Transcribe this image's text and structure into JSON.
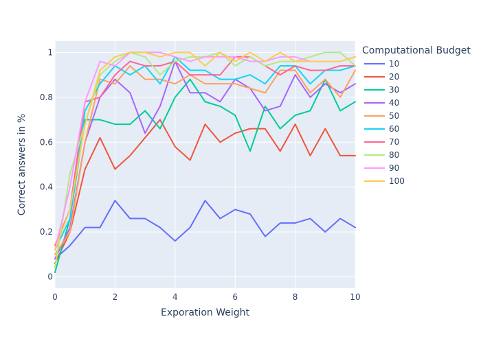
{
  "chart_data": {
    "type": "line",
    "title": "",
    "xlabel": "Exporation Weight",
    "ylabel": "Correct answers in %",
    "xlim": [
      0,
      10
    ],
    "ylim": [
      -0.05,
      1.05
    ],
    "xticks": [
      0,
      2,
      4,
      6,
      8,
      10
    ],
    "yticks": [
      0,
      0.2,
      0.4,
      0.6,
      0.8,
      1
    ],
    "ytick_labels": [
      "0",
      "0.2",
      "0.4",
      "0.6",
      "0.8",
      "1"
    ],
    "grid": true,
    "legend_title": "Computational Budget",
    "legend_position": "right",
    "x": [
      0,
      0.5,
      1,
      1.5,
      2,
      2.5,
      3,
      3.5,
      4,
      4.5,
      5,
      5.5,
      6,
      6.5,
      7,
      7.5,
      8,
      8.5,
      9,
      9.5,
      10
    ],
    "series": [
      {
        "name": "10",
        "color": "#636efa",
        "values": [
          0.08,
          0.14,
          0.22,
          0.22,
          0.34,
          0.26,
          0.26,
          0.22,
          0.16,
          0.22,
          0.34,
          0.26,
          0.3,
          0.28,
          0.18,
          0.24,
          0.24,
          0.26,
          0.2,
          0.26,
          0.22
        ]
      },
      {
        "name": "20",
        "color": "#ef553b",
        "values": [
          0.06,
          0.2,
          0.48,
          0.62,
          0.48,
          0.54,
          0.62,
          0.7,
          0.58,
          0.52,
          0.68,
          0.6,
          0.64,
          0.66,
          0.66,
          0.56,
          0.68,
          0.54,
          0.66,
          0.54,
          0.54
        ]
      },
      {
        "name": "30",
        "color": "#00cc96",
        "values": [
          0.02,
          0.26,
          0.7,
          0.7,
          0.68,
          0.68,
          0.74,
          0.66,
          0.8,
          0.88,
          0.78,
          0.76,
          0.72,
          0.56,
          0.76,
          0.66,
          0.72,
          0.74,
          0.88,
          0.74,
          0.78
        ]
      },
      {
        "name": "40",
        "color": "#ab63fa",
        "values": [
          0.08,
          0.22,
          0.6,
          0.8,
          0.88,
          0.82,
          0.64,
          0.76,
          0.96,
          0.82,
          0.82,
          0.78,
          0.88,
          0.84,
          0.74,
          0.76,
          0.9,
          0.8,
          0.86,
          0.82,
          0.86
        ]
      },
      {
        "name": "50",
        "color": "#ffa15a",
        "values": [
          0.1,
          0.2,
          0.6,
          0.88,
          0.86,
          0.94,
          0.88,
          0.88,
          0.86,
          0.9,
          0.86,
          0.86,
          0.86,
          0.84,
          0.82,
          0.92,
          0.92,
          0.82,
          0.88,
          0.8,
          0.92
        ]
      },
      {
        "name": "60",
        "color": "#19d3f3",
        "values": [
          0.12,
          0.26,
          0.74,
          0.86,
          0.94,
          0.9,
          0.94,
          0.86,
          0.98,
          0.92,
          0.92,
          0.88,
          0.88,
          0.9,
          0.86,
          0.94,
          0.94,
          0.86,
          0.92,
          0.92,
          0.94
        ]
      },
      {
        "name": "70",
        "color": "#ff6692",
        "values": [
          0.14,
          0.3,
          0.78,
          0.8,
          0.9,
          0.96,
          0.94,
          0.94,
          0.96,
          0.9,
          0.9,
          0.9,
          0.98,
          0.98,
          0.94,
          0.9,
          0.94,
          0.92,
          0.92,
          0.94,
          0.94
        ]
      },
      {
        "name": "80",
        "color": "#b6e880",
        "values": [
          0.04,
          0.46,
          0.68,
          0.9,
          0.96,
          1.0,
          0.98,
          0.9,
          0.96,
          0.98,
          0.98,
          1.0,
          0.94,
          0.98,
          0.94,
          0.96,
          0.96,
          0.98,
          1.0,
          1.0,
          0.94
        ]
      },
      {
        "name": "90",
        "color": "#ff97ff",
        "values": [
          0.12,
          0.4,
          0.78,
          0.96,
          0.94,
          1.0,
          1.0,
          1.0,
          0.98,
          0.96,
          0.98,
          0.98,
          0.98,
          0.96,
          0.96,
          0.98,
          0.98,
          0.96,
          0.96,
          0.96,
          0.98
        ]
      },
      {
        "name": "100",
        "color": "#fecb52",
        "values": [
          0.12,
          0.3,
          0.68,
          0.92,
          0.98,
          1.0,
          1.0,
          0.98,
          1.0,
          1.0,
          0.94,
          1.0,
          0.96,
          1.0,
          0.96,
          1.0,
          0.96,
          0.96,
          0.96,
          0.96,
          0.98
        ]
      }
    ]
  }
}
